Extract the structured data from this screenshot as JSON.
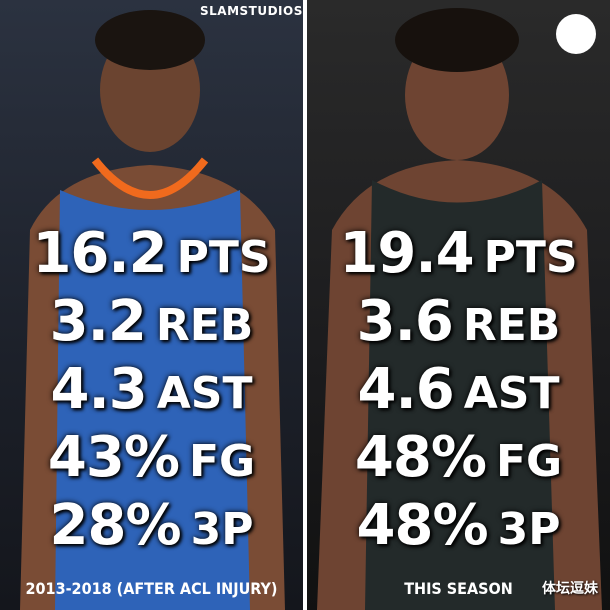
{
  "brand": "SLAMSTUDIOS",
  "panels": [
    {
      "stats": [
        {
          "value": "16.2",
          "label": "PTS"
        },
        {
          "value": "3.2",
          "label": "REB"
        },
        {
          "value": "4.3",
          "label": "AST"
        },
        {
          "value": "43%",
          "label": "FG"
        },
        {
          "value": "28%",
          "label": "3P"
        }
      ],
      "caption": "2013-2018 (AFTER ACL INJURY)"
    },
    {
      "stats": [
        {
          "value": "19.4",
          "label": "PTS"
        },
        {
          "value": "3.6",
          "label": "REB"
        },
        {
          "value": "4.6",
          "label": "AST"
        },
        {
          "value": "48%",
          "label": "FG"
        },
        {
          "value": "48%",
          "label": "3P"
        }
      ],
      "caption": "THIS SEASON"
    }
  ],
  "watermark": "体坛逗妹"
}
